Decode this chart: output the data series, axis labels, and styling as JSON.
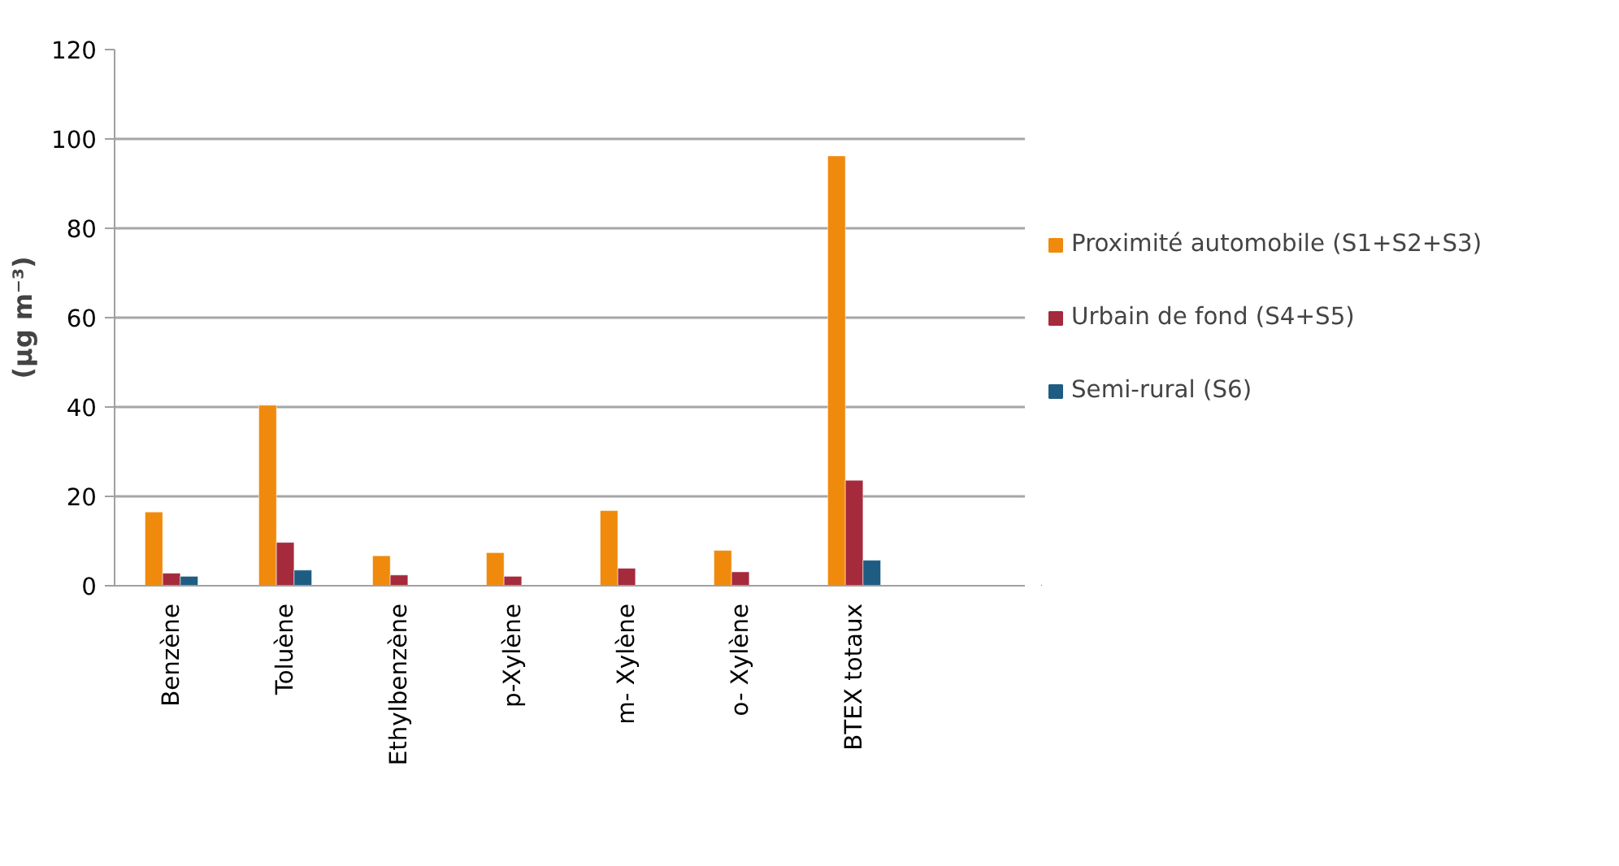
{
  "chart_data": {
    "type": "bar",
    "ylabel": "(µg m⁻³)",
    "categories": [
      "Benzène",
      "Toluène",
      "Ethylbenzène",
      "p-Xylène",
      "m- Xylène",
      "o- Xylène",
      "BTEX totaux",
      null
    ],
    "series": [
      {
        "name": "Proximité automobile (S1+S2+S3)",
        "color": "#f08a0c",
        "values": [
          16.5,
          40.4,
          6.7,
          7.4,
          16.8,
          7.9,
          96.2,
          null
        ]
      },
      {
        "name": "Urbain de fond (S4+S5)",
        "color": "#a52a3c",
        "values": [
          2.8,
          9.7,
          2.4,
          2.1,
          3.9,
          3.1,
          23.6,
          null
        ]
      },
      {
        "name": "Semi-rural (S6)",
        "color": "#1f5c82",
        "values": [
          2.1,
          3.5,
          null,
          null,
          null,
          null,
          5.7,
          null
        ]
      }
    ],
    "ylim": [
      0,
      120
    ],
    "yticks": [
      0,
      20,
      40,
      60,
      80,
      100,
      120
    ],
    "grid": "y",
    "legend": "right"
  }
}
